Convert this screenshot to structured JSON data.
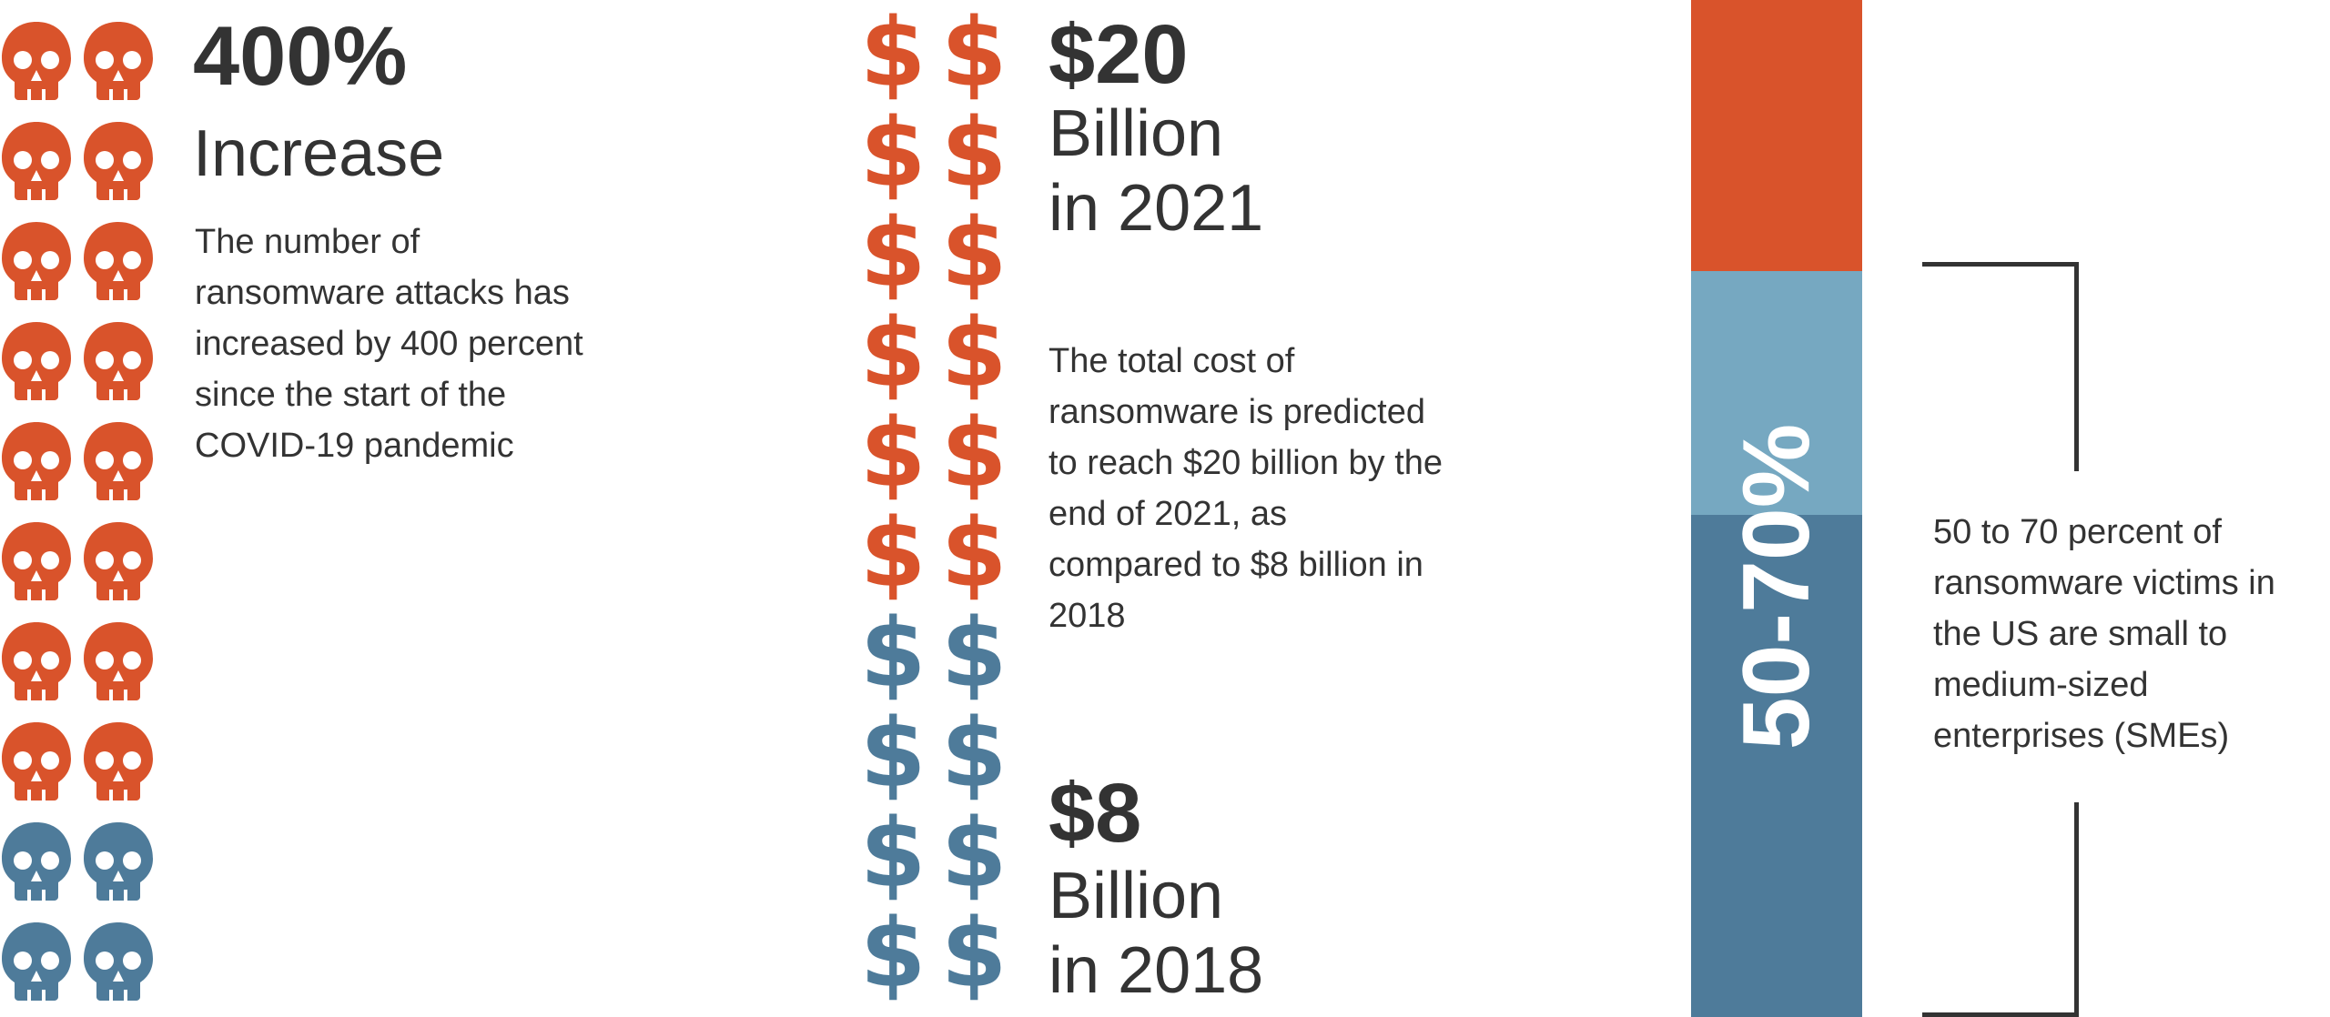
{
  "colors": {
    "orange": "#d9532b",
    "blue": "#4e7b9a",
    "light_blue": "#76a8c1",
    "text": "#333333"
  },
  "icons": {
    "skull": "skull-icon",
    "dollar": "dollar-icon"
  },
  "attacks": {
    "stat": "400%",
    "label": "Increase",
    "description": "The number of ransomware attacks has increased by 400 percent since the start of the COVID-19 pandemic",
    "skull_rows_orange": 8,
    "skull_rows_blue": 2
  },
  "cost": {
    "stat_2021": "$20",
    "label_2021_line1": "Billion",
    "label_2021_line2": "in 2021",
    "description": "The total cost of ransomware is predicted to reach $20 billion by the end of 2021, as compared to $8 billion in 2018",
    "stat_2018": "$8",
    "label_2018_line1": "Billion",
    "label_2018_line2": "in 2018",
    "dollar_symbol": "$",
    "dollar_rows_orange": 6,
    "dollar_rows_blue": 4
  },
  "sme": {
    "range": "50-70%",
    "low_pct": 50,
    "high_pct": 70,
    "description": "50 to 70 percent of ransomware victims in the US are small to medium-sized enterprises (SMEs)"
  }
}
